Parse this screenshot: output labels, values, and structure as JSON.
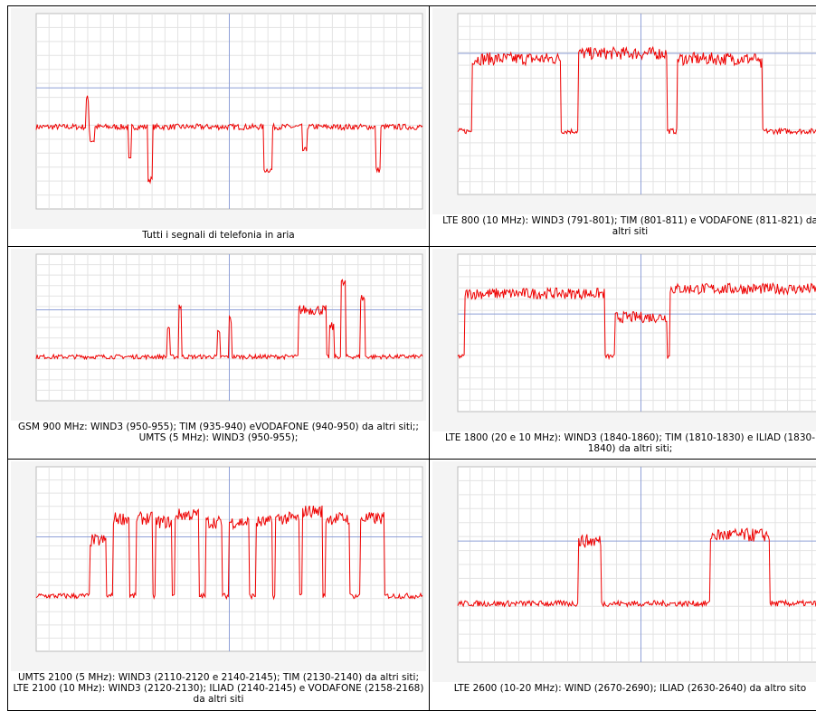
{
  "table": {
    "rows": [
      [
        "Tutti i segnali di telefonia in aria",
        "LTE 800 (10 MHz): WIND3 (791-801); TIM (801-811) e VODAFONE (811-821)  da altri siti"
      ],
      [
        "GSM 900 MHz: WIND3 (950-955); TIM (935-940) eVODAFONE (940-950) da altri siti;;  UMTS (5 MHz): WIND3  (950-955);",
        "LTE 1800 (20 e 10 MHz): WIND3 (1840-1860);  TIM (1810-1830) e ILIAD (1830-1840) da altri siti;"
      ],
      [
        "UMTS 2100 (5 MHz): WIND3 (2110-2120 e 2140-2145); TIM (2130-2140) da altri siti; LTE 2100 (10 MHz): WIND3 (2120-2130); ILIAD (2140-2145) e VODAFONE (2158-2168) da altri siti",
        "LTE 2600 (10-20 MHz): WIND (2670-2690); ILIAD (2630-2640) da altro sito"
      ]
    ]
  }
}
